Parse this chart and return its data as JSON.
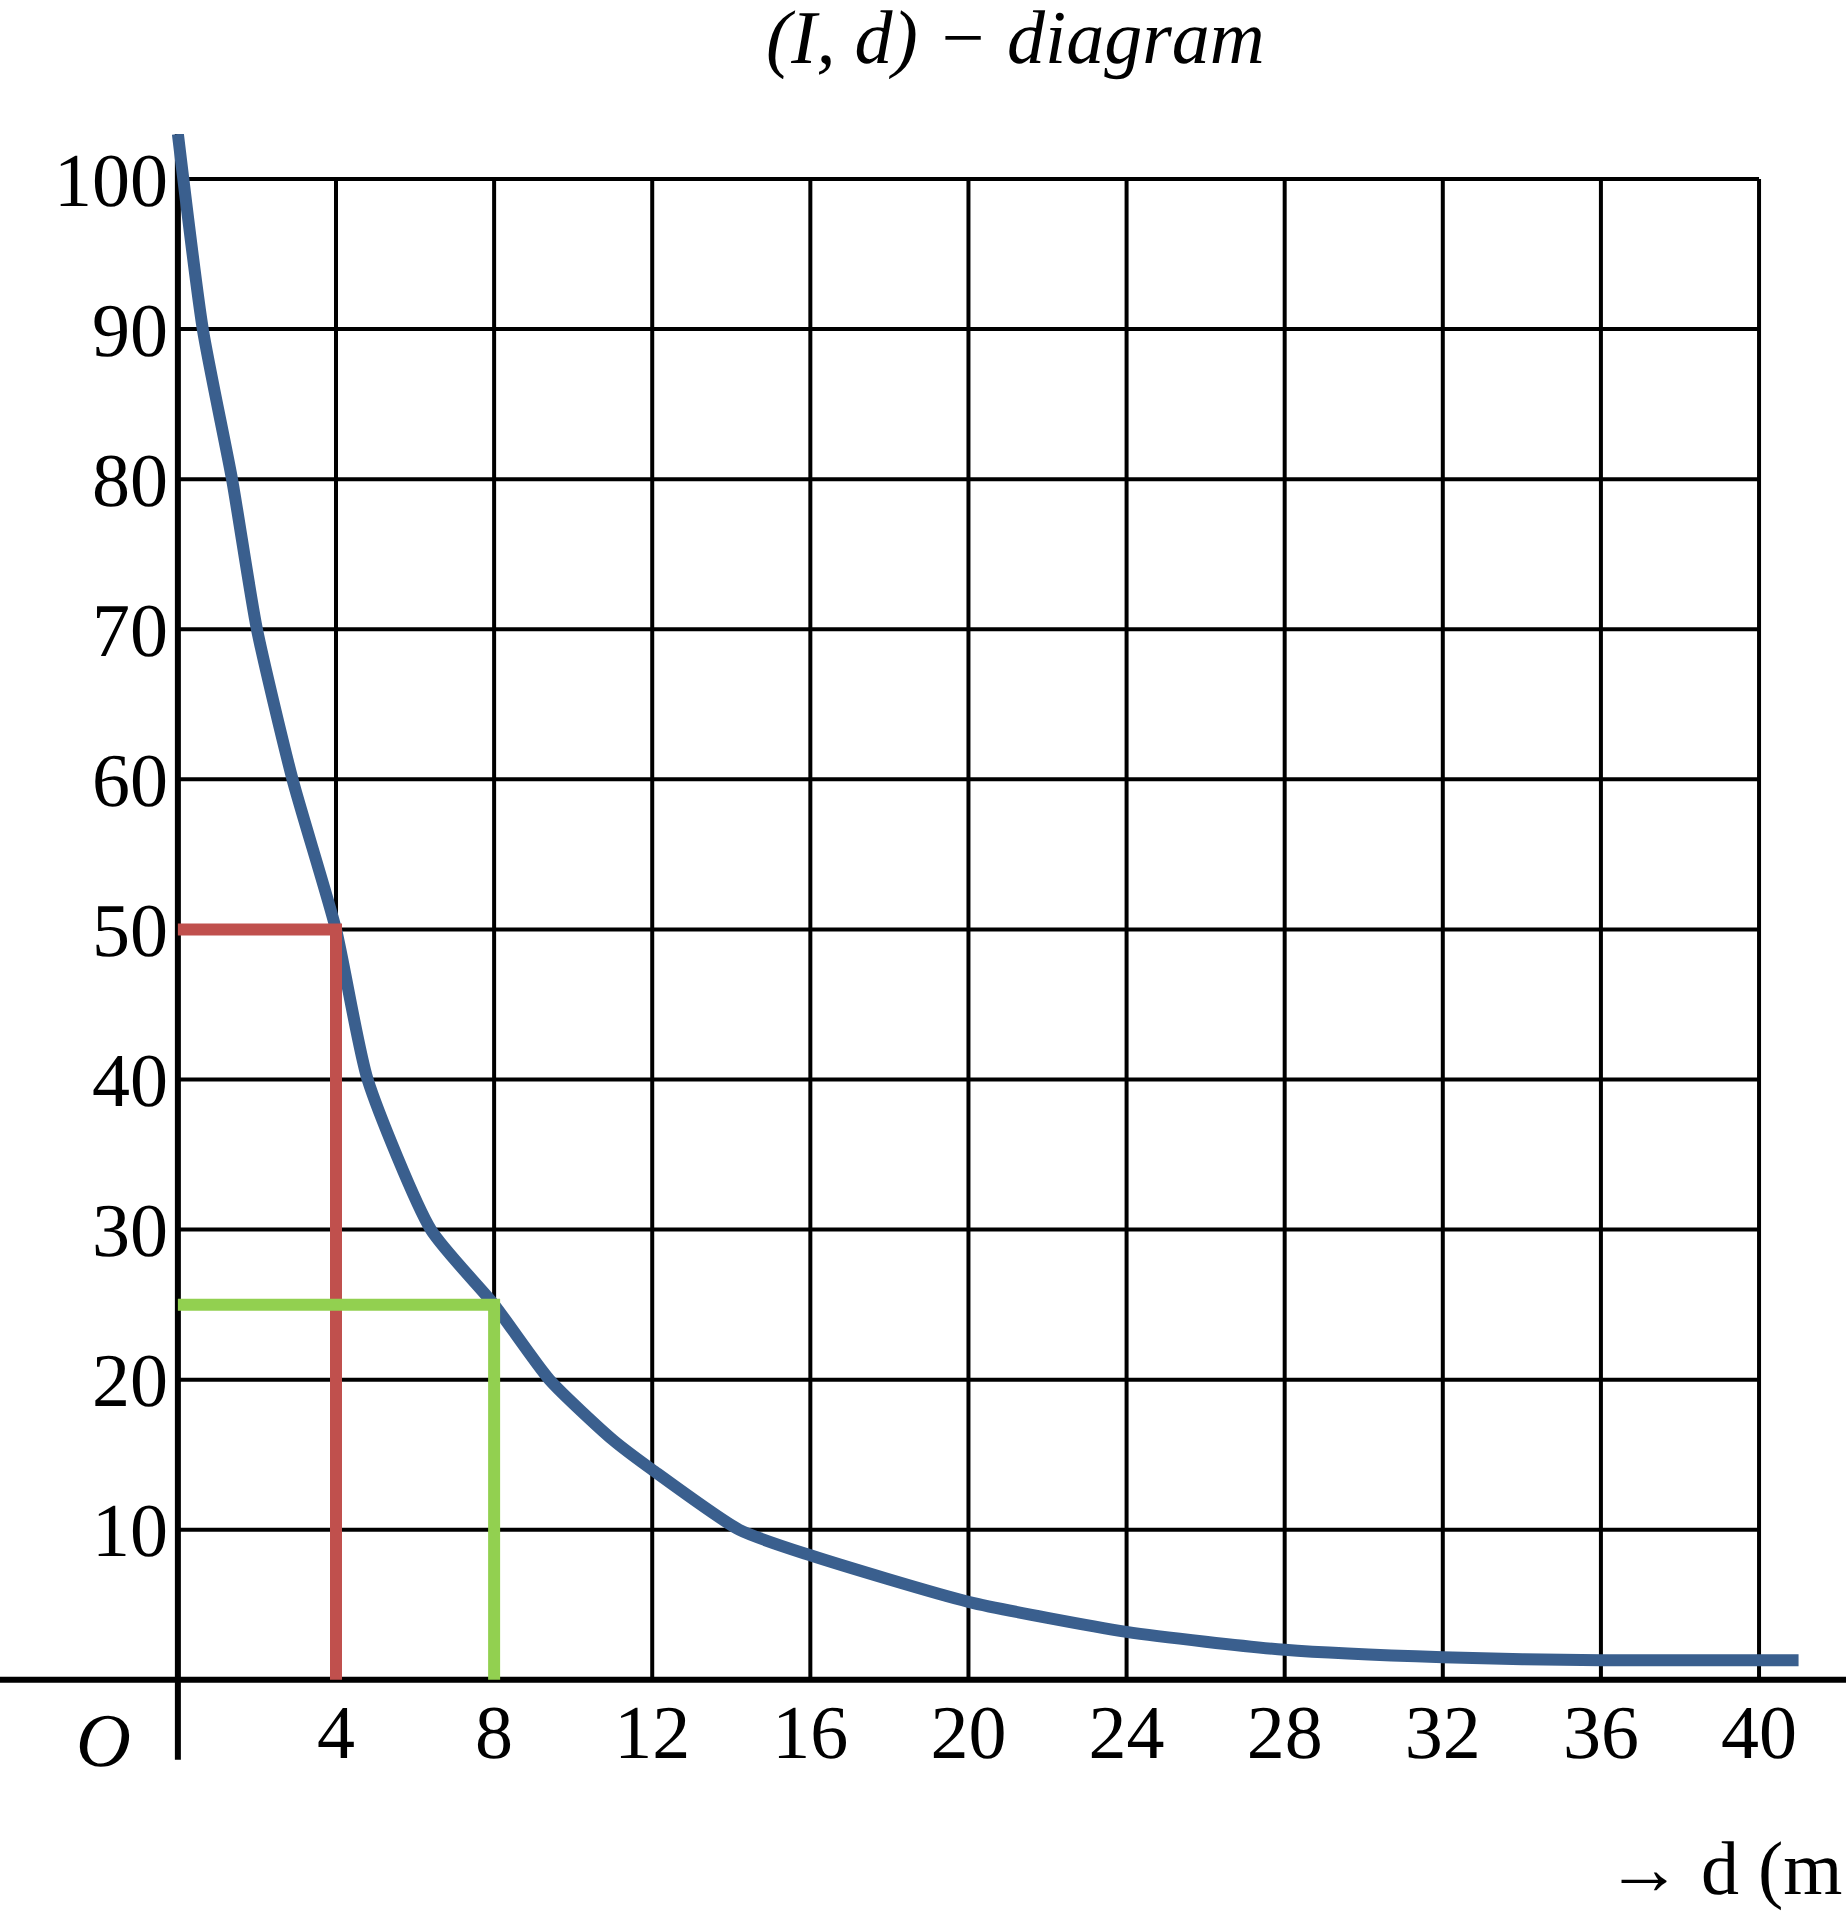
{
  "chart_data": {
    "type": "line",
    "title": "(I, d) − diagram",
    "xlabel": "→ d (m",
    "annotations": [
      "O"
    ],
    "xlim": [
      -4.5,
      42.2
    ],
    "ylim": [
      -16,
      103
    ],
    "xticks": [
      4,
      8,
      12,
      16,
      20,
      24,
      28,
      32,
      36,
      40
    ],
    "yticks": [
      10,
      20,
      30,
      40,
      50,
      60,
      70,
      80,
      90,
      100
    ],
    "grid": true,
    "marker": "none",
    "line_style": "solid",
    "series": [
      {
        "color": "#3a5f8e",
        "x": [
          0,
          0.63,
          1.37,
          2,
          2.9,
          4,
          4.8,
          6.4,
          8,
          9.4,
          11,
          12,
          14.2,
          16,
          20,
          24,
          28,
          32,
          36,
          41
        ],
        "values": [
          103,
          90,
          80,
          70,
          60,
          50,
          40,
          30,
          25,
          20,
          16,
          14,
          10,
          8.3,
          5.2,
          3.2,
          2,
          1.5,
          1.3,
          1.3
        ]
      },
      {
        "color": "#c0504d",
        "x": [
          0,
          4,
          4
        ],
        "values": [
          50,
          50,
          0
        ]
      },
      {
        "color": "#92d050",
        "x": [
          0,
          8,
          8
        ],
        "values": [
          25,
          25,
          0
        ]
      }
    ]
  }
}
